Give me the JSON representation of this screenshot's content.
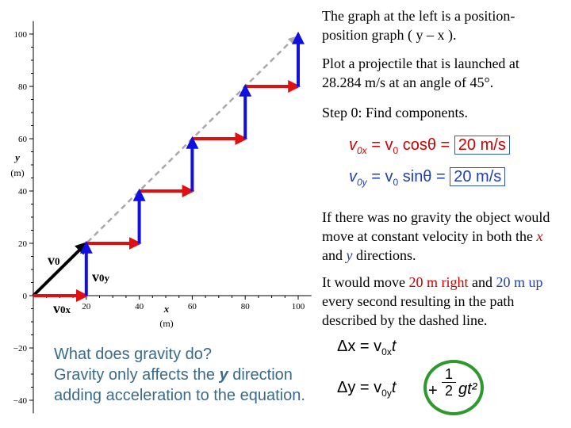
{
  "axes": {
    "x_ticks": [
      "20",
      "40",
      "60",
      "80",
      "100"
    ],
    "y_ticks": [
      "100",
      "80",
      "60",
      "40",
      "20",
      "0",
      "−20",
      "−40"
    ],
    "x_label": [
      "x",
      "(m)"
    ],
    "y_label": [
      "y",
      "(m)"
    ]
  },
  "vector_labels": {
    "v0": "v",
    "v0_sub": "0",
    "v0y": "v",
    "v0y_sub": "0y",
    "v0x": "v",
    "v0x_sub": "0x"
  },
  "text": {
    "intro": "The graph at the left is a position-position graph ( y – x ).",
    "task": "Plot a projectile that is launched at 28.284 m/s at an angle of 45°.",
    "step0": "Step 0: Find components.",
    "no_gravity_1": "If there was no gravity the object would move at constant velocity in both the ",
    "no_gravity_x": "x",
    "no_gravity_and": " and ",
    "no_gravity_y": "y",
    "no_gravity_end": " directions.",
    "move_1": "It would move ",
    "move_right": "20 m right",
    "move_and": " and ",
    "move_up_val": "20 m",
    "move_up": "up",
    "move_end": " every second resulting in the path described by the dashed line.",
    "gravity_q": "What does gravity do?",
    "gravity_a1": "Gravity only affects the ",
    "gravity_a_y": "y",
    "gravity_a2": " direction adding acceleration to the equation."
  },
  "equations": {
    "v0x_lhs": "v",
    "v0x_lhs_sub": "0x",
    "v0x_rhs": "= v",
    "v0x_rhs_sub": "0",
    "v0x_trig": " cosθ =",
    "v0x_val": "20 m/s",
    "v0y_lhs": "v",
    "v0y_lhs_sub": "0y",
    "v0y_rhs": "= v",
    "v0y_rhs_sub": "0",
    "v0y_trig": " sinθ =",
    "v0y_val": "20 m/s",
    "dx_lhs": "Δx = v",
    "dx_sub": "0x",
    "dx_t": "t",
    "dy_lhs": "Δy = v",
    "dy_sub": "0y",
    "dy_t": "t",
    "grav_plus": "+",
    "grav_num": "1",
    "grav_den": "2",
    "grav_term": "gt²"
  },
  "chart_data": {
    "type": "line",
    "xlim": [
      0,
      105
    ],
    "ylim": [
      -45,
      105
    ],
    "dashed_path": {
      "x": [
        0,
        100
      ],
      "y": [
        0,
        100
      ]
    },
    "x_steps": [
      [
        0,
        20
      ],
      [
        20,
        40
      ],
      [
        40,
        60
      ],
      [
        60,
        80
      ],
      [
        80,
        100
      ]
    ],
    "y_steps": [
      [
        20,
        0,
        20
      ],
      [
        40,
        20,
        40
      ],
      [
        60,
        40,
        60
      ],
      [
        80,
        60,
        80
      ],
      [
        100,
        80,
        100
      ]
    ],
    "v0_vector": {
      "x": [
        0,
        20
      ],
      "y": [
        0,
        20
      ]
    },
    "colors": {
      "x_step": "#e01010",
      "y_step": "#1010e0",
      "dashed": "#a8a8a8",
      "v0": "#000000",
      "circle": "#2e9a2e"
    }
  }
}
